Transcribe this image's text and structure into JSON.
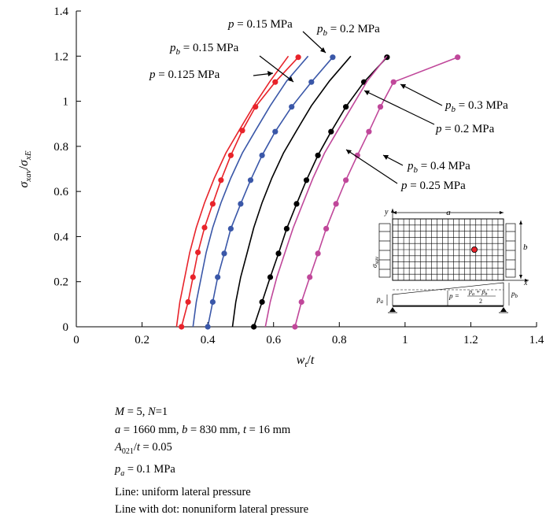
{
  "chart_data": {
    "type": "line",
    "xlabel": "w_t/t",
    "ylabel": "σ_xav/σ_xE",
    "xlim": [
      0,
      1.4
    ],
    "ylim": [
      0,
      1.4
    ],
    "x_ticks": [
      "0",
      "0.2",
      "0.4",
      "0.6",
      "0.8",
      "1",
      "1.2",
      "1.4"
    ],
    "y_ticks": [
      "0",
      "0.2",
      "0.4",
      "0.6",
      "0.8",
      "1",
      "1.2",
      "1.4"
    ],
    "grid": false,
    "colors": {
      "p015": "#e8232a",
      "p02": "#3a57a8",
      "p025": "#000000",
      "p03": "#c0479a"
    },
    "series": [
      {
        "name": "p = 0.125 MPa",
        "style": "line",
        "color": "#e8232a",
        "points": [
          [
            0.305,
            0
          ],
          [
            0.315,
            0.11
          ],
          [
            0.33,
            0.22
          ],
          [
            0.345,
            0.33
          ],
          [
            0.365,
            0.44
          ],
          [
            0.39,
            0.55
          ],
          [
            0.42,
            0.66
          ],
          [
            0.455,
            0.77
          ],
          [
            0.495,
            0.87
          ],
          [
            0.54,
            0.98
          ],
          [
            0.59,
            1.09
          ],
          [
            0.645,
            1.2
          ]
        ]
      },
      {
        "name": "p_b = 0.15 MPa",
        "style": "dots",
        "color": "#e8232a",
        "points": [
          [
            0.32,
            0
          ],
          [
            0.34,
            0.11
          ],
          [
            0.355,
            0.22
          ],
          [
            0.37,
            0.33
          ],
          [
            0.39,
            0.44
          ],
          [
            0.415,
            0.545
          ],
          [
            0.44,
            0.65
          ],
          [
            0.47,
            0.76
          ],
          [
            0.505,
            0.87
          ],
          [
            0.545,
            0.975
          ],
          [
            0.605,
            1.085
          ],
          [
            0.675,
            1.195
          ]
        ]
      },
      {
        "name": "p = 0.15 MPa",
        "style": "line",
        "color": "#3a57a8",
        "points": [
          [
            0.355,
            0
          ],
          [
            0.365,
            0.11
          ],
          [
            0.38,
            0.22
          ],
          [
            0.395,
            0.33
          ],
          [
            0.415,
            0.44
          ],
          [
            0.44,
            0.55
          ],
          [
            0.47,
            0.66
          ],
          [
            0.505,
            0.77
          ],
          [
            0.545,
            0.87
          ],
          [
            0.59,
            0.98
          ],
          [
            0.64,
            1.09
          ],
          [
            0.705,
            1.2
          ]
        ]
      },
      {
        "name": "p_b = 0.2 MPa",
        "style": "dots",
        "color": "#3a57a8",
        "points": [
          [
            0.4,
            0
          ],
          [
            0.415,
            0.11
          ],
          [
            0.43,
            0.22
          ],
          [
            0.45,
            0.325
          ],
          [
            0.47,
            0.435
          ],
          [
            0.5,
            0.545
          ],
          [
            0.53,
            0.65
          ],
          [
            0.565,
            0.76
          ],
          [
            0.605,
            0.865
          ],
          [
            0.655,
            0.975
          ],
          [
            0.715,
            1.085
          ],
          [
            0.78,
            1.195
          ]
        ]
      },
      {
        "name": "p = 0.2 MPa",
        "style": "line",
        "color": "#000000",
        "points": [
          [
            0.475,
            0
          ],
          [
            0.485,
            0.11
          ],
          [
            0.5,
            0.22
          ],
          [
            0.52,
            0.33
          ],
          [
            0.54,
            0.44
          ],
          [
            0.565,
            0.55
          ],
          [
            0.595,
            0.66
          ],
          [
            0.63,
            0.77
          ],
          [
            0.67,
            0.87
          ],
          [
            0.715,
            0.98
          ],
          [
            0.77,
            1.09
          ],
          [
            0.835,
            1.2
          ]
        ]
      },
      {
        "name": "p_b = 0.3 MPa",
        "style": "dots",
        "color": "#000000",
        "points": [
          [
            0.54,
            0
          ],
          [
            0.565,
            0.11
          ],
          [
            0.59,
            0.22
          ],
          [
            0.615,
            0.325
          ],
          [
            0.64,
            0.435
          ],
          [
            0.67,
            0.545
          ],
          [
            0.7,
            0.65
          ],
          [
            0.735,
            0.76
          ],
          [
            0.775,
            0.865
          ],
          [
            0.82,
            0.975
          ],
          [
            0.875,
            1.085
          ],
          [
            0.945,
            1.195
          ]
        ]
      },
      {
        "name": "p = 0.25 MPa",
        "style": "line",
        "color": "#c0479a",
        "points": [
          [
            0.575,
            0
          ],
          [
            0.59,
            0.11
          ],
          [
            0.61,
            0.22
          ],
          [
            0.635,
            0.33
          ],
          [
            0.66,
            0.44
          ],
          [
            0.69,
            0.55
          ],
          [
            0.72,
            0.66
          ],
          [
            0.755,
            0.77
          ],
          [
            0.795,
            0.87
          ],
          [
            0.84,
            0.98
          ],
          [
            0.885,
            1.09
          ],
          [
            0.945,
            1.2
          ]
        ]
      },
      {
        "name": "p_b = 0.4 MPa",
        "style": "dots",
        "color": "#c0479a",
        "points": [
          [
            0.665,
            0
          ],
          [
            0.685,
            0.11
          ],
          [
            0.71,
            0.22
          ],
          [
            0.735,
            0.325
          ],
          [
            0.76,
            0.435
          ],
          [
            0.79,
            0.545
          ],
          [
            0.82,
            0.65
          ],
          [
            0.855,
            0.76
          ],
          [
            0.89,
            0.865
          ],
          [
            0.925,
            0.975
          ],
          [
            0.965,
            1.085
          ],
          [
            1.16,
            1.195
          ]
        ]
      }
    ],
    "annotations": [
      {
        "text": "p = 0.15 MPa",
        "target_series": 2
      },
      {
        "text": "p_b = 0.2 MPa",
        "target_series": 3
      },
      {
        "text": "p_b = 0.15 MPa",
        "target_series": 1
      },
      {
        "text": "p = 0.125 MPa",
        "target_series": 0
      },
      {
        "text": "p_b = 0.3 MPa",
        "target_series": 5
      },
      {
        "text": "p = 0.2 MPa",
        "target_series": 4
      },
      {
        "text": "p_b = 0.4 MPa",
        "target_series": 7
      },
      {
        "text": "p = 0.25 MPa",
        "target_series": 6
      }
    ]
  },
  "inset": {
    "label_a": "a",
    "label_b": "b",
    "label_y": "y",
    "label_x": "x",
    "label_sigma": "σ_xav",
    "label_pa": "p_a",
    "label_pb": "p_b",
    "formula_left": "p =",
    "formula_num": "p_a + p_b",
    "formula_den": "2",
    "marker_color": "#e8232a"
  },
  "notes": [
    "M = 5, N=1",
    "a = 1660 mm, b = 830 mm, t = 16 mm",
    "A021/t = 0.05",
    "p_a = 0.1 MPa",
    "Line: uniform lateral pressure",
    "Line with dot: nonuniform lateral pressure"
  ]
}
